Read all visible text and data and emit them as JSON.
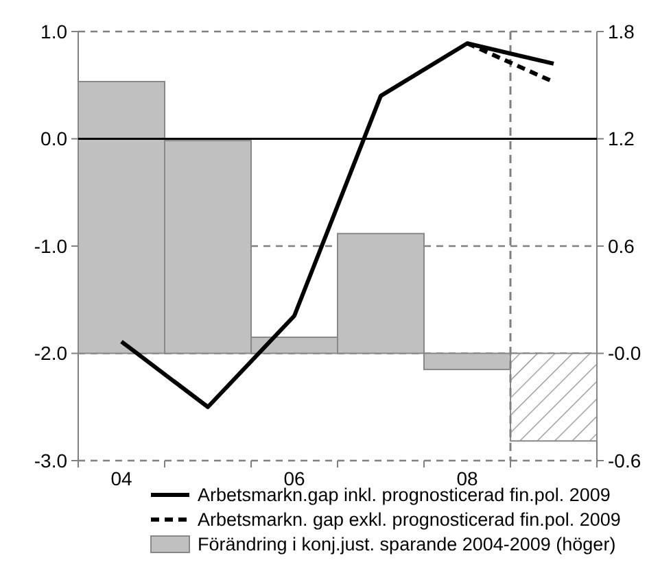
{
  "chart_data": {
    "type": "line",
    "x": [
      2004,
      2005,
      2006,
      2007,
      2008,
      2009
    ],
    "xlim": [
      2003.5,
      2009.5
    ],
    "xticks": [
      {
        "value": 2003.5,
        "label": null
      },
      {
        "value": 2004,
        "label": "04"
      },
      {
        "value": 2004.5,
        "label": null
      },
      {
        "value": 2005.5,
        "label": null
      },
      {
        "value": 2006,
        "label": "06"
      },
      {
        "value": 2006.5,
        "label": null
      },
      {
        "value": 2007.5,
        "label": null
      },
      {
        "value": 2008,
        "label": "08"
      },
      {
        "value": 2008.5,
        "label": null
      },
      {
        "value": 2009.5,
        "label": null
      }
    ],
    "ylim": [
      -3,
      1
    ],
    "yticks": [
      {
        "value": 1,
        "label": "1.0"
      },
      {
        "value": 0,
        "label": "0.0"
      },
      {
        "value": -1,
        "label": "-1.0"
      },
      {
        "value": -2,
        "label": "-2.0"
      },
      {
        "value": -3,
        "label": "-3.0"
      }
    ],
    "y2lim": [
      -0.6,
      1.8
    ],
    "y2ticks": [
      1.8,
      1.2,
      0.6,
      {
        "value": 0,
        "label": "-0.0"
      },
      -0.6
    ],
    "grid": "y",
    "legend": "bottom",
    "ref_lines": [
      {
        "axis": "y",
        "value": 0,
        "color": "#000000",
        "line_style": "solid"
      },
      {
        "axis": "x",
        "value": 2008.5,
        "color": "#808080",
        "line_style": "dashed"
      }
    ],
    "series": [
      {
        "name": "Arbetsmarkn.gap inkl. prognosticerad fin.pol. 2009",
        "color": "#000000",
        "line_style": "solid",
        "values": [
          -1.89,
          -2.5,
          -1.65,
          0.4,
          0.89,
          0.7
        ]
      },
      {
        "name": "Arbetsmarkn. gap exkl. prognosticerad fin.pol. 2009",
        "color": "#000000",
        "line_style": "dashed",
        "values": [
          null,
          null,
          null,
          null,
          0.89,
          0.53
        ]
      },
      {
        "name": "Förändring i konj.just. sparande 2004-2009 (höger)",
        "type": "bar",
        "axis": "y2",
        "color": "#c0c0c0",
        "colors": [
          "#c0c0c0",
          "#c0c0c0",
          "#c0c0c0",
          "#c0c0c0",
          "#c0c0c0",
          "#888888"
        ],
        "values": [
          1.52,
          1.19,
          0.09,
          0.67,
          -0.09,
          -0.49
        ]
      }
    ]
  }
}
